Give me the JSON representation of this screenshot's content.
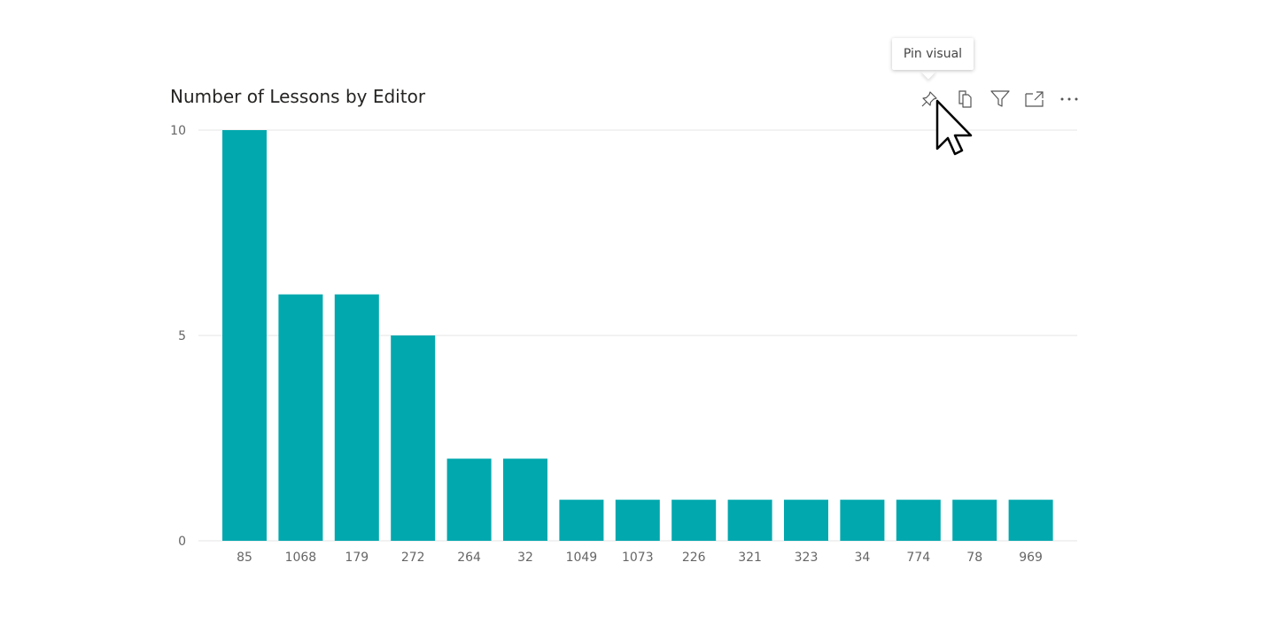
{
  "tooltip": {
    "text": "Pin visual"
  },
  "header_icons": [
    "pin-icon",
    "copy-icon",
    "filter-icon",
    "focus-mode-icon",
    "more-options-icon"
  ],
  "colors": {
    "bar": "#01A8AE",
    "grid": "#e6e6e6",
    "axis_text": "#666666",
    "title": "#252423"
  },
  "chart_data": {
    "type": "bar",
    "title": "Number of Lessons by Editor",
    "xlabel": "",
    "ylabel": "",
    "categories": [
      "85",
      "1068",
      "179",
      "272",
      "264",
      "32",
      "1049",
      "1073",
      "226",
      "321",
      "323",
      "34",
      "774",
      "78",
      "969"
    ],
    "values": [
      10,
      6,
      6,
      5,
      2,
      2,
      1,
      1,
      1,
      1,
      1,
      1,
      1,
      1,
      1
    ],
    "ylim": [
      0,
      10
    ],
    "yticks": [
      0,
      5,
      10
    ],
    "grid": true,
    "legend": "none"
  }
}
